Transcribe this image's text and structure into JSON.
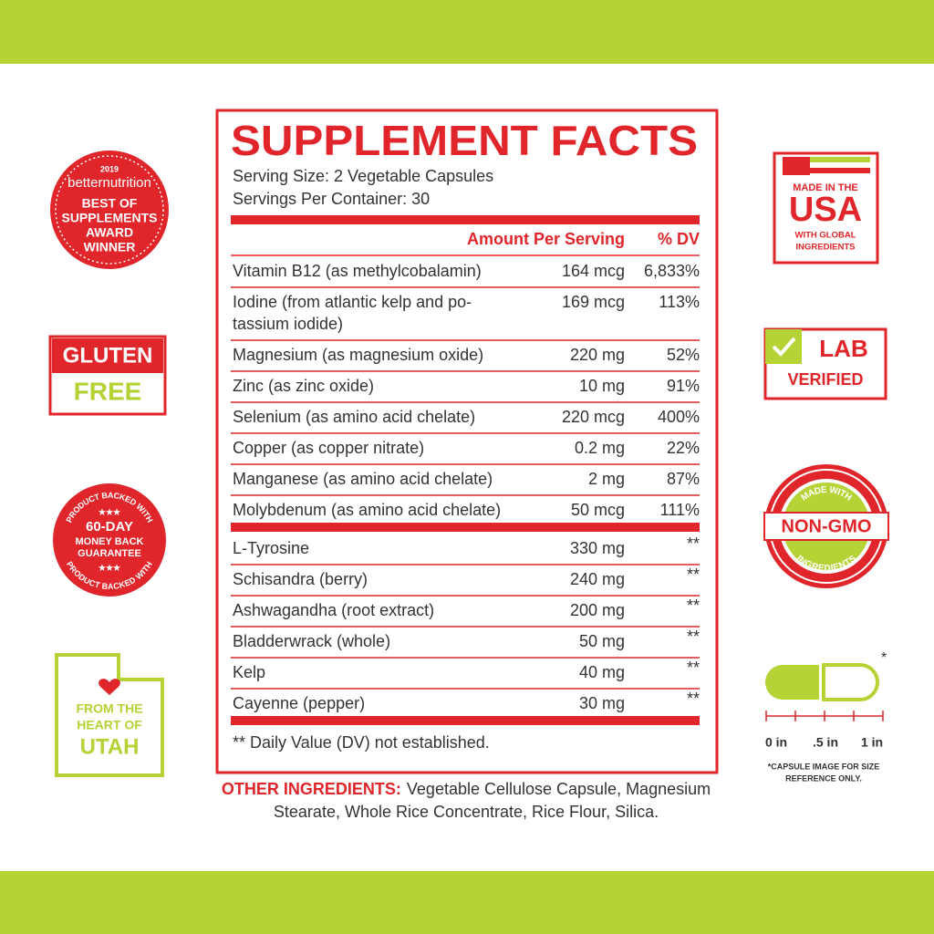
{
  "header": {
    "title": "SUPPLEMENT FACTS",
    "serving_size": "Serving Size: 2 Vegetable Capsules",
    "servings_per_container": "Servings Per Container: 30"
  },
  "table": {
    "columns": [
      "Amount Per Serving",
      "% DV"
    ],
    "groups": [
      [
        {
          "name": [
            "Vitamin B12 (as methylcobalamin)"
          ],
          "amount": "164 mcg",
          "dv": "6,833%"
        },
        {
          "name": [
            "Iodine (from atlantic kelp and po-",
            "tassium iodide)"
          ],
          "amount": "169 mcg",
          "dv": "113%"
        },
        {
          "name": [
            "Magnesium (as magnesium oxide)"
          ],
          "amount": "220 mg",
          "dv": "52%"
        },
        {
          "name": [
            "Zinc (as zinc oxide)"
          ],
          "amount": "10 mg",
          "dv": "91%"
        },
        {
          "name": [
            "Selenium (as amino acid chelate)"
          ],
          "amount": "220 mcg",
          "dv": "400%"
        },
        {
          "name": [
            "Copper (as copper nitrate)"
          ],
          "amount": "0.2 mg",
          "dv": "22%"
        },
        {
          "name": [
            "Manganese (as amino acid chelate)"
          ],
          "amount": "2 mg",
          "dv": "87%"
        },
        {
          "name": [
            "Molybdenum (as amino acid chelate)"
          ],
          "amount": "50 mcg",
          "dv": "111%"
        }
      ],
      [
        {
          "name": [
            "L-Tyrosine"
          ],
          "amount": "330 mg",
          "dv": "**"
        },
        {
          "name": [
            "Schisandra (berry)"
          ],
          "amount": "240 mg",
          "dv": "**"
        },
        {
          "name": [
            "Ashwagandha (root extract)"
          ],
          "amount": "200 mg",
          "dv": "**"
        },
        {
          "name": [
            "Bladderwrack (whole)"
          ],
          "amount": "50 mg",
          "dv": "**"
        },
        {
          "name": [
            "Kelp"
          ],
          "amount": "40 mg",
          "dv": "**"
        },
        {
          "name": [
            "Cayenne (pepper)"
          ],
          "amount": "30 mg",
          "dv": "**"
        }
      ]
    ],
    "footnote": "** Daily Value (DV) not established."
  },
  "other_ingredients": {
    "label": "OTHER INGREDIENTS:",
    "lines": [
      "Vegetable Cellulose Capsule, Magnesium",
      "Stearate, Whole Rice Concentrate, Rice Flour, Silica."
    ]
  },
  "badges": {
    "award": {
      "year": "2019",
      "publisher": "betternutrition",
      "lines": [
        "BEST OF",
        "SUPPLEMENTS",
        "AWARD",
        "WINNER"
      ]
    },
    "gluten_free": [
      "GLUTEN",
      "FREE"
    ],
    "guarantee": {
      "arc_text": "PRODUCT BACKED WITH",
      "stars": "★★★",
      "lines": [
        "60-DAY",
        "MONEY BACK",
        "GUARANTEE"
      ]
    },
    "utah": [
      "FROM THE",
      "HEART OF",
      "UTAH"
    ],
    "usa": [
      "MADE IN THE",
      "USA",
      "WITH GLOBAL",
      "INGREDIENTS"
    ],
    "lab": [
      "LAB",
      "VERIFIED"
    ],
    "non_gmo": {
      "top": "MADE WITH",
      "main": "NON-GMO",
      "bottom": "INGREDIENTS"
    },
    "capsule": {
      "asterisk": "*",
      "scale": [
        "0 in",
        ".5 in",
        "1 in"
      ],
      "note": [
        "*CAPSULE IMAGE FOR SIZE",
        "REFERENCE ONLY."
      ]
    }
  }
}
